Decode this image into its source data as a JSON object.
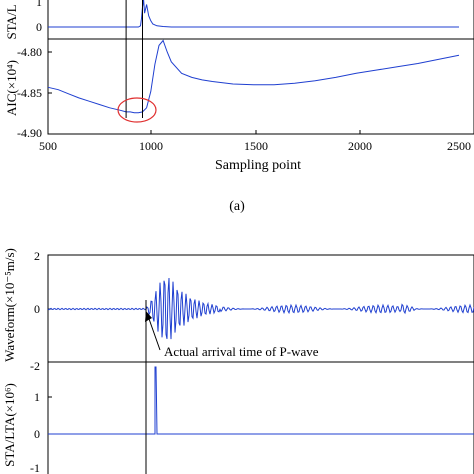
{
  "figure": {
    "caption_a": "(a)"
  },
  "chart_data": [
    {
      "panel": "a",
      "type": "line",
      "xlabel": "Sampling point",
      "x_ticks": [
        "500",
        "1000",
        "1500",
        "2000",
        "2500"
      ],
      "xlim": [
        500,
        2500
      ],
      "subplots": [
        {
          "ylabel": "STA/L",
          "y_ticks": [
            "1",
            "0"
          ],
          "ylim": [
            0,
            1
          ],
          "series": [
            {
              "color": "#1f3fd0",
              "x": [
                500,
                850,
                940,
                950,
                955,
                960,
                965,
                970,
                980,
                990,
                1000,
                1010,
                1030,
                1060,
                1100,
                1500,
                2000,
                2500
              ],
              "y": [
                0,
                0,
                0,
                0.05,
                0.35,
                0.8,
                1.1,
                0.55,
                0.9,
                0.45,
                0.25,
                0.12,
                0.05,
                0.02,
                0,
                0,
                0,
                0
              ]
            }
          ]
        },
        {
          "ylabel": "AIC(×10⁴)",
          "y_ticks": [
            "-4.80",
            "-4.85",
            "-4.90"
          ],
          "ylim": [
            -4.9,
            -4.78
          ],
          "series": [
            {
              "color": "#1f3fd0",
              "x": [
                500,
                550,
                600,
                650,
                700,
                750,
                800,
                850,
                880,
                900,
                920,
                940,
                960,
                980,
                1000,
                1020,
                1040,
                1060,
                1080,
                1100,
                1150,
                1200,
                1250,
                1300,
                1400,
                1500,
                1600,
                1700,
                1800,
                1900,
                2000,
                2100,
                2200,
                2300,
                2400,
                2500
              ],
              "y": [
                -4.843,
                -4.846,
                -4.851,
                -4.856,
                -4.86,
                -4.864,
                -4.868,
                -4.871,
                -4.873,
                -4.873,
                -4.874,
                -4.874,
                -4.873,
                -4.868,
                -4.848,
                -4.815,
                -4.792,
                -4.786,
                -4.8,
                -4.812,
                -4.826,
                -4.831,
                -4.834,
                -4.836,
                -4.839,
                -4.84,
                -4.84,
                -4.838,
                -4.835,
                -4.831,
                -4.826,
                -4.822,
                -4.818,
                -4.814,
                -4.809,
                -4.804
              ]
            }
          ]
        }
      ],
      "markers": [
        880,
        960
      ]
    },
    {
      "panel": "b",
      "type": "line",
      "subplots": [
        {
          "ylabel": "Waveform(×10⁻⁵m/s)",
          "y_ticks": [
            "2",
            "0",
            "-2"
          ],
          "ylim": [
            -2,
            2
          ],
          "series": [
            {
              "color": "#1f3fd0"
            }
          ]
        },
        {
          "ylabel": "STA/LTA(×10⁶)",
          "y_ticks": [
            "1",
            "0",
            "-1"
          ],
          "ylim": [
            -1,
            2
          ],
          "series": [
            {
              "color": "#1f3fd0"
            }
          ]
        }
      ],
      "annotation": "Actual arrival time of P-wave"
    }
  ]
}
